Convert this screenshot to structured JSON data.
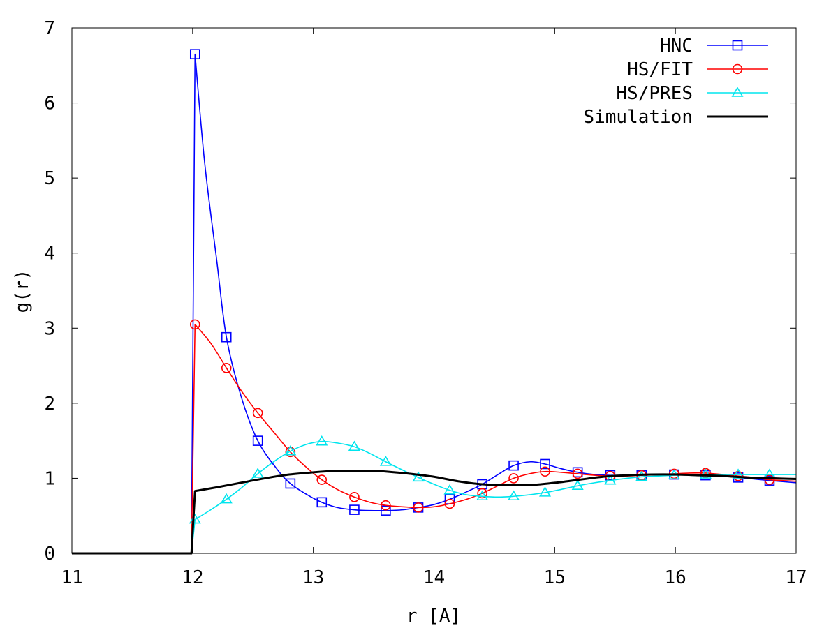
{
  "chart_data": {
    "type": "line",
    "title": "",
    "xlabel": "r [A]",
    "ylabel": "g(r)",
    "xlim": [
      11,
      17
    ],
    "ylim": [
      0,
      7
    ],
    "xticks": [
      "11",
      "12",
      "13",
      "14",
      "15",
      "16",
      "17"
    ],
    "yticks": [
      "0",
      "1",
      "2",
      "3",
      "4",
      "5",
      "6",
      "7"
    ],
    "grid": false,
    "legend_position": "top-right",
    "series": [
      {
        "name": "HNC",
        "color": "#0000ff",
        "marker": "square",
        "x": [
          11.0,
          11.99,
          12.02,
          12.1,
          12.2,
          12.28,
          12.4,
          12.54,
          12.7,
          12.81,
          12.95,
          13.07,
          13.2,
          13.34,
          13.47,
          13.6,
          13.74,
          13.87,
          14.0,
          14.13,
          14.27,
          14.4,
          14.53,
          14.66,
          14.8,
          14.92,
          15.05,
          15.19,
          15.33,
          15.46,
          15.6,
          15.72,
          15.86,
          15.99,
          16.12,
          16.25,
          16.39,
          16.52,
          16.65,
          16.78,
          17.0
        ],
        "y": [
          0.0,
          0.0,
          6.65,
          5.2,
          3.9,
          2.88,
          2.1,
          1.5,
          1.12,
          0.93,
          0.78,
          0.68,
          0.61,
          0.58,
          0.57,
          0.57,
          0.58,
          0.61,
          0.65,
          0.72,
          0.82,
          0.92,
          1.05,
          1.17,
          1.22,
          1.19,
          1.13,
          1.08,
          1.05,
          1.04,
          1.04,
          1.04,
          1.05,
          1.05,
          1.05,
          1.04,
          1.03,
          1.01,
          0.99,
          0.97,
          0.94
        ],
        "markers_x": [
          12.02,
          12.28,
          12.54,
          12.81,
          13.07,
          13.34,
          13.6,
          13.87,
          14.13,
          14.4,
          14.66,
          14.92,
          15.19,
          15.46,
          15.72,
          15.99,
          16.25,
          16.52,
          16.78
        ],
        "markers_y": [
          6.65,
          2.88,
          1.5,
          0.93,
          0.68,
          0.58,
          0.57,
          0.61,
          0.72,
          0.92,
          1.17,
          1.19,
          1.08,
          1.04,
          1.04,
          1.05,
          1.04,
          1.01,
          0.97
        ]
      },
      {
        "name": "HS/FIT",
        "color": "#ff0000",
        "marker": "circle",
        "x": [
          11.0,
          11.99,
          12.02,
          12.15,
          12.28,
          12.41,
          12.54,
          12.68,
          12.81,
          12.94,
          13.07,
          13.2,
          13.34,
          13.47,
          13.6,
          13.74,
          13.87,
          14.0,
          14.13,
          14.27,
          14.4,
          14.53,
          14.66,
          14.79,
          14.92,
          15.05,
          15.19,
          15.33,
          15.46,
          15.6,
          15.72,
          15.86,
          15.99,
          16.12,
          16.25,
          16.39,
          16.52,
          16.65,
          16.78,
          17.0
        ],
        "y": [
          0.0,
          0.0,
          3.05,
          2.8,
          2.47,
          2.15,
          1.87,
          1.6,
          1.35,
          1.15,
          0.98,
          0.85,
          0.75,
          0.68,
          0.64,
          0.62,
          0.61,
          0.62,
          0.66,
          0.72,
          0.8,
          0.9,
          1.0,
          1.06,
          1.09,
          1.08,
          1.06,
          1.04,
          1.03,
          1.03,
          1.04,
          1.05,
          1.06,
          1.07,
          1.07,
          1.05,
          1.03,
          1.01,
          0.98,
          0.96
        ],
        "markers_x": [
          12.02,
          12.28,
          12.54,
          12.81,
          13.07,
          13.34,
          13.6,
          13.87,
          14.13,
          14.4,
          14.66,
          14.92,
          15.19,
          15.46,
          15.72,
          15.99,
          16.25,
          16.52,
          16.78
        ],
        "markers_y": [
          3.05,
          2.47,
          1.87,
          1.35,
          0.98,
          0.75,
          0.64,
          0.61,
          0.66,
          0.8,
          1.0,
          1.09,
          1.06,
          1.03,
          1.04,
          1.06,
          1.07,
          1.03,
          0.98
        ]
      },
      {
        "name": "HS/PRES",
        "color": "#00e5ee",
        "marker": "triangle",
        "x": [
          11.0,
          11.99,
          12.02,
          12.15,
          12.28,
          12.41,
          12.54,
          12.68,
          12.81,
          12.94,
          13.07,
          13.2,
          13.34,
          13.47,
          13.6,
          13.74,
          13.87,
          14.0,
          14.13,
          14.27,
          14.4,
          14.53,
          14.66,
          14.79,
          14.92,
          15.05,
          15.19,
          15.33,
          15.46,
          15.6,
          15.72,
          15.86,
          15.99,
          16.12,
          16.25,
          16.39,
          16.52,
          16.65,
          16.78,
          17.0
        ],
        "y": [
          0.0,
          0.0,
          0.45,
          0.58,
          0.72,
          0.88,
          1.06,
          1.23,
          1.36,
          1.45,
          1.49,
          1.47,
          1.42,
          1.33,
          1.22,
          1.11,
          1.01,
          0.92,
          0.84,
          0.78,
          0.76,
          0.75,
          0.76,
          0.78,
          0.81,
          0.85,
          0.9,
          0.94,
          0.97,
          1.0,
          1.02,
          1.03,
          1.04,
          1.05,
          1.05,
          1.05,
          1.05,
          1.05,
          1.05,
          1.05
        ],
        "markers_x": [
          12.02,
          12.28,
          12.54,
          12.81,
          13.07,
          13.34,
          13.6,
          13.87,
          14.13,
          14.4,
          14.66,
          14.92,
          15.19,
          15.46,
          15.72,
          15.99,
          16.25,
          16.52,
          16.78
        ],
        "markers_y": [
          0.45,
          0.72,
          1.06,
          1.36,
          1.49,
          1.42,
          1.22,
          1.01,
          0.84,
          0.76,
          0.76,
          0.81,
          0.9,
          0.97,
          1.02,
          1.04,
          1.05,
          1.05,
          1.05
        ]
      },
      {
        "name": "Simulation",
        "color": "#000000",
        "marker": "none",
        "x": [
          11.0,
          11.99,
          12.02,
          12.2,
          12.4,
          12.6,
          12.8,
          13.0,
          13.2,
          13.3,
          13.4,
          13.5,
          13.6,
          13.8,
          14.0,
          14.2,
          14.4,
          14.6,
          14.8,
          15.0,
          15.2,
          15.4,
          15.6,
          15.8,
          16.0,
          16.2,
          16.4,
          16.6,
          16.8,
          17.0
        ],
        "y": [
          0.0,
          0.0,
          0.83,
          0.88,
          0.94,
          1.0,
          1.05,
          1.08,
          1.1,
          1.1,
          1.1,
          1.1,
          1.09,
          1.06,
          1.02,
          0.96,
          0.92,
          0.91,
          0.91,
          0.94,
          0.98,
          1.02,
          1.04,
          1.05,
          1.05,
          1.04,
          1.03,
          1.01,
          1.0,
          0.99
        ]
      }
    ]
  }
}
